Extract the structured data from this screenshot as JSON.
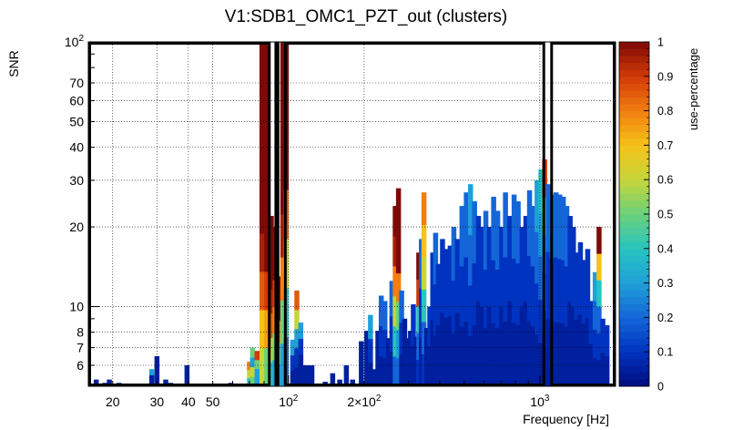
{
  "chart_data": {
    "type": "heatmap",
    "title": "V1:SDB1_OMC1_PZT_out (clusters)",
    "xlabel": "Frequency [Hz]",
    "ylabel": "SNR",
    "x_scale": "log",
    "y_scale": "log",
    "xlim": [
      16,
      2000
    ],
    "ylim": [
      5,
      100
    ],
    "grid": true,
    "x_ticks": [
      {
        "value": 20,
        "label": "20"
      },
      {
        "value": 30,
        "label": "30"
      },
      {
        "value": 40,
        "label": "40"
      },
      {
        "value": 50,
        "label": "50"
      },
      {
        "value": 100,
        "label": "10",
        "sup": "2"
      },
      {
        "value": 200,
        "label": "2×10",
        "sup": "2"
      },
      {
        "value": 1000,
        "label": "10",
        "sup": "3"
      }
    ],
    "y_ticks": [
      {
        "value": 6,
        "label": "6"
      },
      {
        "value": 7,
        "label": "7"
      },
      {
        "value": 8,
        "label": "8"
      },
      {
        "value": 10,
        "label": "10"
      },
      {
        "value": 20,
        "label": "20"
      },
      {
        "value": 30,
        "label": "30"
      },
      {
        "value": 40,
        "label": "40"
      },
      {
        "value": 50,
        "label": "50"
      },
      {
        "value": 60,
        "label": "60"
      },
      {
        "value": 70,
        "label": "70"
      },
      {
        "value": 100,
        "label": "10",
        "sup": "2"
      }
    ],
    "colorbar": {
      "label": "use-percentage",
      "range": [
        0,
        1
      ],
      "ticks": [
        "0",
        "0.1",
        "0.2",
        "0.3",
        "0.4",
        "0.5",
        "0.6",
        "0.7",
        "0.8",
        "0.9",
        "1"
      ],
      "palette": [
        "#352a87",
        "#0f5cdd",
        "#1481d6",
        "#06a4ca",
        "#2eb7a4",
        "#87bf77",
        "#d1bb59",
        "#fec832",
        "#f9fb0e"
      ],
      "palette_note": "dark-blue to dark-red rainbow",
      "colors": [
        "#000c7d",
        "#0033c0",
        "#1466d8",
        "#1fa0d8",
        "#27c4c0",
        "#6cd07a",
        "#c6d63a",
        "#f5c21a",
        "#f27e10",
        "#d23a08",
        "#7d0a06"
      ]
    },
    "highlight_boxes": [
      {
        "xmin": 16,
        "xmax": 85,
        "ymin": 5,
        "ymax": 100
      },
      {
        "xmin": 88,
        "xmax": 92,
        "ymin": 5,
        "ymax": 100
      },
      {
        "xmin": 96,
        "xmax": 1050,
        "ymin": 5,
        "ymax": 100
      },
      {
        "xmin": 1100,
        "xmax": 2000,
        "ymin": 5,
        "ymax": 100
      }
    ],
    "columns": [
      {
        "f": 17.2,
        "top": 5.3,
        "c": [
          0.05
        ]
      },
      {
        "f": 18.6,
        "top": 5.15,
        "c": [
          0.05
        ]
      },
      {
        "f": 19.4,
        "top": 5.3,
        "c": [
          0.05
        ]
      },
      {
        "f": 21.2,
        "top": 5.15,
        "c": [
          0.05
        ]
      },
      {
        "f": 28.6,
        "top": 5.8,
        "c": [
          0.05,
          0.05,
          0.3
        ]
      },
      {
        "f": 30.0,
        "top": 6.5,
        "c": [
          0.05,
          0.05,
          0.05
        ]
      },
      {
        "f": 32.5,
        "top": 5.3,
        "c": [
          0.05
        ]
      },
      {
        "f": 34.0,
        "top": 5.15,
        "c": [
          0.05
        ]
      },
      {
        "f": 39.5,
        "top": 6.0,
        "c": [
          0.05,
          0.05
        ]
      },
      {
        "f": 59.0,
        "top": 5.15,
        "c": [
          0.05
        ]
      },
      {
        "f": 70.0,
        "top": 6.2,
        "c": [
          0.4,
          0.6,
          0.8
        ]
      },
      {
        "f": 72.0,
        "top": 7.0,
        "c": [
          0.5,
          0.6,
          0.3,
          0.5
        ]
      },
      {
        "f": 75.0,
        "top": 6.8,
        "c": [
          0.3,
          0.3,
          0.5,
          0.9
        ]
      },
      {
        "f": 78.5,
        "top": 100,
        "c": [
          0.6,
          0.7,
          0.85,
          0.95,
          1,
          1,
          1,
          1,
          1
        ]
      },
      {
        "f": 82.0,
        "top": 100,
        "c": [
          0.5,
          0.75,
          0.9,
          1,
          1,
          1,
          1,
          1,
          1
        ]
      },
      {
        "f": 85.5,
        "top": 22,
        "c": [
          0.4,
          0.6,
          0.85,
          0.95,
          1,
          1,
          1
        ]
      },
      {
        "f": 88.5,
        "top": 20,
        "c": [
          0.3,
          0.5,
          0.8,
          0.9,
          1,
          1
        ]
      },
      {
        "f": 91.5,
        "top": 13,
        "c": [
          0.3,
          0.5,
          0.8,
          1,
          1
        ]
      },
      {
        "f": 95.0,
        "top": 100,
        "c": [
          0.3,
          0.5,
          0.8,
          0.95,
          1,
          1,
          1,
          1
        ]
      },
      {
        "f": 98.0,
        "top": 100,
        "c": [
          0.2,
          0.4,
          0.6,
          0.85,
          1,
          1,
          1
        ]
      },
      {
        "f": 104.0,
        "top": 7.5,
        "c": [
          0.05,
          0.1,
          0.3
        ]
      },
      {
        "f": 108.0,
        "top": 11.5,
        "c": [
          0.05,
          0.1,
          0.3,
          0.6,
          0.85
        ]
      },
      {
        "f": 112.0,
        "top": 8.7,
        "c": [
          0.05,
          0.05,
          0.1,
          0.3
        ]
      },
      {
        "f": 116.0,
        "top": 6.0,
        "c": [
          0.05,
          0.05
        ]
      },
      {
        "f": 120.0,
        "top": 6.0,
        "c": [
          0.05
        ]
      },
      {
        "f": 124.0,
        "top": 6.0,
        "c": [
          0.05
        ]
      },
      {
        "f": 140.0,
        "top": 5.2,
        "c": [
          0.05
        ]
      },
      {
        "f": 150.0,
        "top": 5.6,
        "c": [
          0.05
        ]
      },
      {
        "f": 160.0,
        "top": 5.3,
        "c": [
          0.05
        ]
      },
      {
        "f": 170.0,
        "top": 6.0,
        "c": [
          0.05
        ]
      },
      {
        "f": 180.0,
        "top": 5.3,
        "c": [
          0.05
        ]
      },
      {
        "f": 195.0,
        "top": 7.4,
        "c": [
          0.05,
          0.05
        ]
      },
      {
        "f": 205.0,
        "top": 8.1,
        "c": [
          0.05,
          0.05
        ]
      },
      {
        "f": 212.0,
        "top": 9.3,
        "c": [
          0.05,
          0.1,
          0.3
        ]
      },
      {
        "f": 219.0,
        "top": 5.8,
        "c": [
          0.05
        ]
      },
      {
        "f": 227.0,
        "top": 8.1,
        "c": [
          0.05,
          0.05
        ]
      },
      {
        "f": 234.0,
        "top": 11.0,
        "c": [
          0.05,
          0.1,
          0.2
        ]
      },
      {
        "f": 242.0,
        "top": 10.5,
        "c": [
          0.05,
          0.1,
          0.2
        ]
      },
      {
        "f": 250.0,
        "top": 7.6,
        "c": [
          0.05,
          0.05
        ]
      },
      {
        "f": 258.0,
        "top": 12.5,
        "c": [
          0.05,
          0.1,
          0.2
        ]
      },
      {
        "f": 266.0,
        "top": 24.0,
        "c": [
          0.2,
          0.4,
          0.6,
          0.8,
          0.95,
          1
        ]
      },
      {
        "f": 274.0,
        "top": 28.0,
        "c": [
          0.2,
          0.3,
          0.5,
          0.8,
          1,
          1,
          1
        ]
      },
      {
        "f": 282.0,
        "top": 11.5,
        "c": [
          0.05,
          0.1,
          0.2
        ]
      },
      {
        "f": 290.0,
        "top": 9.0,
        "c": [
          0.05,
          0.05
        ]
      },
      {
        "f": 298.0,
        "top": 7.6,
        "c": [
          0.05,
          0.05
        ]
      },
      {
        "f": 306.0,
        "top": 8.1,
        "c": [
          0.05,
          0.05
        ]
      },
      {
        "f": 314.0,
        "top": 10.2,
        "c": [
          0.05,
          0.1
        ]
      },
      {
        "f": 322.0,
        "top": 7.7,
        "c": [
          0.05
        ]
      },
      {
        "f": 330.0,
        "top": 16.0,
        "c": [
          0.1,
          0.2,
          0.4,
          0.9,
          1
        ]
      },
      {
        "f": 338.0,
        "top": 18.0,
        "c": [
          0.05,
          0.1,
          0.2
        ]
      },
      {
        "f": 346.0,
        "top": 27.0,
        "c": [
          0.1,
          0.2,
          0.4,
          0.6,
          0.7,
          0.8
        ]
      },
      {
        "f": 355.0,
        "top": 8.3,
        "c": [
          0.05,
          0.05
        ]
      },
      {
        "f": 365.0,
        "top": 10.0,
        "c": [
          0.05,
          0.1
        ]
      },
      {
        "f": 375.0,
        "top": 16.0,
        "c": [
          0.05,
          0.1
        ]
      },
      {
        "f": 385.0,
        "top": 19.0,
        "c": [
          0.05,
          0.1,
          0.2
        ]
      },
      {
        "f": 395.0,
        "top": 14.5,
        "c": [
          0.05,
          0.1
        ]
      },
      {
        "f": 410.0,
        "top": 18.0,
        "c": [
          0.05,
          0.1
        ]
      },
      {
        "f": 425.0,
        "top": 16.5,
        "c": [
          0.05,
          0.1
        ]
      },
      {
        "f": 440.0,
        "top": 17.0,
        "c": [
          0.05,
          0.1
        ]
      },
      {
        "f": 455.0,
        "top": 20.0,
        "c": [
          0.05,
          0.1,
          0.2
        ]
      },
      {
        "f": 470.0,
        "top": 18.0,
        "c": [
          0.05,
          0.1
        ]
      },
      {
        "f": 490.0,
        "top": 24.0,
        "c": [
          0.05,
          0.1,
          0.2
        ]
      },
      {
        "f": 510.0,
        "top": 27.0,
        "c": [
          0.05,
          0.1,
          0.2
        ]
      },
      {
        "f": 530.0,
        "top": 29.0,
        "c": [
          0.05,
          0.1,
          0.2,
          0.3
        ]
      },
      {
        "f": 550.0,
        "top": 25.0,
        "c": [
          0.05,
          0.1,
          0.2
        ]
      },
      {
        "f": 570.0,
        "top": 22.0,
        "c": [
          0.05,
          0.1
        ]
      },
      {
        "f": 590.0,
        "top": 20.0,
        "c": [
          0.05,
          0.1
        ]
      },
      {
        "f": 610.0,
        "top": 23.0,
        "c": [
          0.05,
          0.1,
          0.2
        ]
      },
      {
        "f": 630.0,
        "top": 20.0,
        "c": [
          0.05,
          0.1
        ]
      },
      {
        "f": 655.0,
        "top": 26.0,
        "c": [
          0.05,
          0.1,
          0.2
        ]
      },
      {
        "f": 680.0,
        "top": 23.0,
        "c": [
          0.05,
          0.1,
          0.2
        ]
      },
      {
        "f": 705.0,
        "top": 20.0,
        "c": [
          0.05,
          0.1
        ]
      },
      {
        "f": 730.0,
        "top": 27.0,
        "c": [
          0.05,
          0.1,
          0.2
        ]
      },
      {
        "f": 760.0,
        "top": 22.0,
        "c": [
          0.05,
          0.1
        ]
      },
      {
        "f": 790.0,
        "top": 26.5,
        "c": [
          0.05,
          0.1,
          0.2
        ]
      },
      {
        "f": 820.0,
        "top": 25.0,
        "c": [
          0.05,
          0.1,
          0.2
        ]
      },
      {
        "f": 850.0,
        "top": 20.0,
        "c": [
          0.05,
          0.1
        ]
      },
      {
        "f": 880.0,
        "top": 22.0,
        "c": [
          0.05,
          0.1
        ]
      },
      {
        "f": 910.0,
        "top": 27.5,
        "c": [
          0.05,
          0.1,
          0.2
        ]
      },
      {
        "f": 940.0,
        "top": 24.0,
        "c": [
          0.05,
          0.1,
          0.2
        ]
      },
      {
        "f": 975.0,
        "top": 30.0,
        "c": [
          0.05,
          0.1,
          0.2,
          0.3
        ]
      },
      {
        "f": 1010.0,
        "top": 33.0,
        "c": [
          0.05,
          0.1,
          0.2,
          0.3,
          0.4
        ]
      },
      {
        "f": 1045.0,
        "top": 36.0,
        "c": [
          0.05,
          0.1,
          0.2,
          0.3,
          0.5,
          0.9
        ]
      },
      {
        "f": 1080.0,
        "top": 29.0,
        "c": [
          0.05,
          0.1,
          0.2
        ]
      },
      {
        "f": 1120.0,
        "top": 26.5,
        "c": [
          0.05,
          0.1,
          0.2
        ]
      },
      {
        "f": 1160.0,
        "top": 27.0,
        "c": [
          0.05,
          0.1,
          0.2
        ]
      },
      {
        "f": 1200.0,
        "top": 26.5,
        "c": [
          0.05,
          0.1,
          0.2
        ]
      },
      {
        "f": 1240.0,
        "top": 26.0,
        "c": [
          0.05,
          0.1,
          0.2
        ]
      },
      {
        "f": 1280.0,
        "top": 24.0,
        "c": [
          0.05,
          0.1,
          0.2
        ]
      },
      {
        "f": 1320.0,
        "top": 22.0,
        "c": [
          0.05,
          0.1
        ]
      },
      {
        "f": 1360.0,
        "top": 20.0,
        "c": [
          0.05,
          0.1
        ]
      },
      {
        "f": 1400.0,
        "top": 16.0,
        "c": [
          0.05,
          0.1
        ]
      },
      {
        "f": 1450.0,
        "top": 17.5,
        "c": [
          0.05,
          0.1
        ]
      },
      {
        "f": 1500.0,
        "top": 15.0,
        "c": [
          0.05,
          0.1
        ]
      },
      {
        "f": 1550.0,
        "top": 16.5,
        "c": [
          0.05,
          0.1
        ]
      },
      {
        "f": 1600.0,
        "top": 10.5,
        "c": [
          0.05,
          0.1
        ]
      },
      {
        "f": 1660.0,
        "top": 13.5,
        "c": [
          0.05,
          0.1,
          0.2,
          0.3
        ]
      },
      {
        "f": 1720.0,
        "top": 20.0,
        "c": [
          0.05,
          0.1,
          0.2,
          0.4,
          0.7,
          1
        ]
      },
      {
        "f": 1780.0,
        "top": 9.0,
        "c": [
          0.05,
          0.1
        ]
      },
      {
        "f": 1850.0,
        "top": 8.5,
        "c": [
          0.05,
          0.1
        ]
      }
    ]
  }
}
